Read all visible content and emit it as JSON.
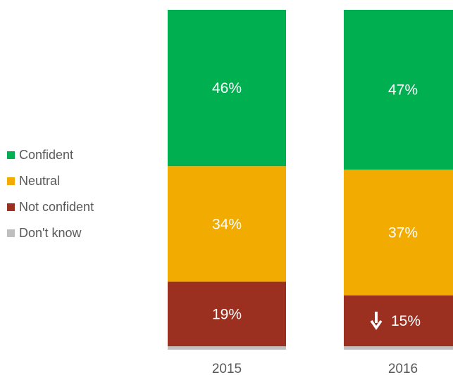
{
  "chart_data": {
    "type": "bar",
    "stacked": true,
    "categories": [
      "2015",
      "2016"
    ],
    "series": [
      {
        "name": "Don't know",
        "color": "#bfbfbf",
        "values": [
          1,
          1
        ],
        "labels": [
          "",
          ""
        ]
      },
      {
        "name": "Not confident",
        "color": "#9b3021",
        "values": [
          19,
          15
        ],
        "labels": [
          "19%",
          "15%"
        ]
      },
      {
        "name": "Neutral",
        "color": "#f2ab00",
        "values": [
          34,
          37
        ],
        "labels": [
          "34%",
          "37%"
        ]
      },
      {
        "name": "Confident",
        "color": "#00b050",
        "values": [
          46,
          47
        ],
        "labels": [
          "46%",
          "47%"
        ]
      }
    ],
    "annotations": [
      {
        "category": "2016",
        "series": "Not confident",
        "icon": "down-arrow-icon",
        "meaning": "decrease"
      }
    ],
    "legend_position": "left",
    "grid": false,
    "ylim": [
      0,
      100
    ]
  },
  "legend": {
    "items": [
      {
        "label": "Confident",
        "color": "#00b050"
      },
      {
        "label": "Neutral",
        "color": "#f2ab00"
      },
      {
        "label": "Not confident",
        "color": "#9b3021"
      },
      {
        "label": "Don't know",
        "color": "#bfbfbf"
      }
    ]
  }
}
